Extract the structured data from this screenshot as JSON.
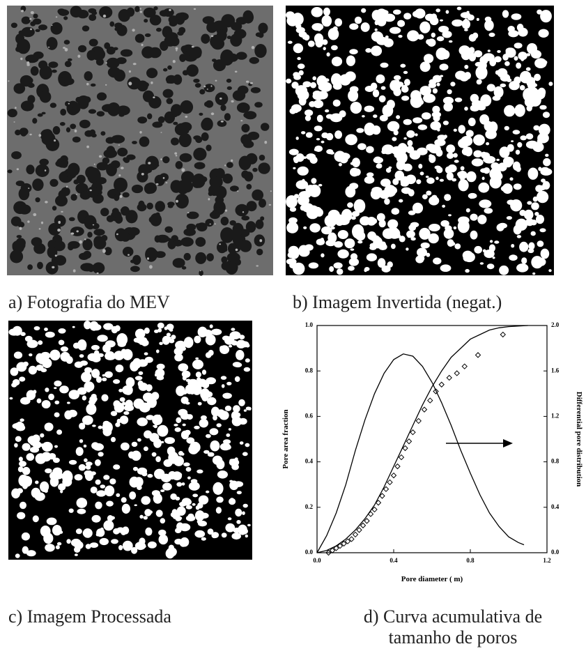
{
  "captions": [
    "a) Fotografia  do  MEV",
    "b) Imagem Invertida  (negat.)",
    "c) Imagem Processada"
  ],
  "caption_d": [
    "d) Curva acumulativa de",
    "tamanho de poros"
  ],
  "chart_data": {
    "type": "line",
    "xlabel": "Pore diameter ( m)",
    "ylabel": "Pore area fraction",
    "y2label": "Differential pore distribution",
    "xlim": [
      0,
      1.2
    ],
    "xticks": [
      {
        "value": 0,
        "label": "0.0"
      },
      0.4,
      0.8,
      1.2
    ],
    "ylim": [
      0,
      1
    ],
    "yticks": [
      {
        "value": 0,
        "label": "0.0"
      },
      0.2,
      0.4,
      0.6,
      0.8,
      {
        "value": 1,
        "label": "1.0"
      }
    ],
    "y2lim": [
      0,
      2
    ],
    "y2ticks": [
      {
        "value": 0,
        "label": "0.0"
      },
      0.4,
      0.8,
      1.2,
      1.6,
      {
        "value": 2,
        "label": "2.0"
      }
    ],
    "series": [
      {
        "type": "scatter",
        "color": "#000000",
        "x": [
          0.06,
          0.08,
          0.1,
          0.12,
          0.14,
          0.16,
          0.18,
          0.2,
          0.22,
          0.24,
          0.26,
          0.28,
          0.3,
          0.32,
          0.34,
          0.36,
          0.38,
          0.4,
          0.42,
          0.44,
          0.46,
          0.48,
          0.5,
          0.53,
          0.56,
          0.59,
          0.62,
          0.65,
          0.69,
          0.73,
          0.77,
          0.84,
          0.97
        ],
        "values": [
          0.0,
          0.01,
          0.02,
          0.03,
          0.04,
          0.05,
          0.06,
          0.08,
          0.1,
          0.12,
          0.14,
          0.17,
          0.19,
          0.22,
          0.25,
          0.28,
          0.31,
          0.34,
          0.38,
          0.42,
          0.46,
          0.49,
          0.53,
          0.58,
          0.63,
          0.67,
          0.71,
          0.74,
          0.77,
          0.79,
          0.82,
          0.87,
          0.96
        ]
      },
      {
        "type": "line",
        "color": "#000000",
        "x": [
          0,
          0.05,
          0.1,
          0.15,
          0.2,
          0.25,
          0.3,
          0.35,
          0.4,
          0.45,
          0.5,
          0.55,
          0.6,
          0.65,
          0.7,
          0.75,
          0.8,
          0.85,
          0.9,
          0.95,
          1.0,
          1.1
        ],
        "values": [
          0,
          0.01,
          0.03,
          0.06,
          0.1,
          0.15,
          0.21,
          0.29,
          0.38,
          0.47,
          0.56,
          0.65,
          0.73,
          0.8,
          0.86,
          0.9,
          0.94,
          0.96,
          0.98,
          0.99,
          0.995,
          1.0
        ]
      },
      {
        "type": "line",
        "axis": "y2",
        "color": "#000000",
        "x": [
          0,
          0.05,
          0.1,
          0.15,
          0.2,
          0.25,
          0.3,
          0.35,
          0.4,
          0.45,
          0.5,
          0.55,
          0.6,
          0.65,
          0.7,
          0.75,
          0.8,
          0.85,
          0.9,
          0.95,
          1.0,
          1.05,
          1.08
        ],
        "values": [
          0,
          0.15,
          0.35,
          0.6,
          0.9,
          1.17,
          1.4,
          1.58,
          1.7,
          1.75,
          1.73,
          1.64,
          1.5,
          1.32,
          1.12,
          0.9,
          0.7,
          0.51,
          0.35,
          0.23,
          0.14,
          0.09,
          0.07
        ]
      }
    ]
  }
}
